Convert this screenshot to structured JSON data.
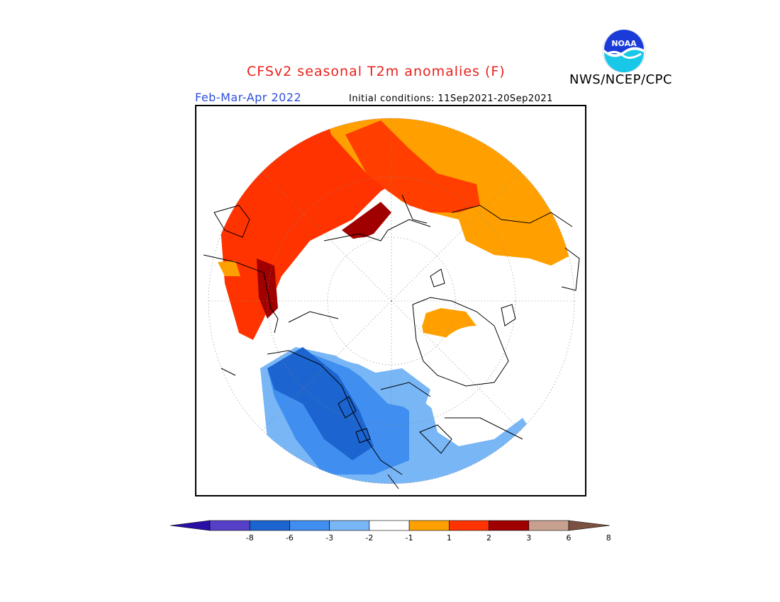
{
  "header": {
    "title": "CFSv2 seasonal T2m anomalies (F)",
    "org": "NWS/NCEP/CPC",
    "period": "Feb-Mar-Apr 2022",
    "initial_conditions": "Initial conditions: 11Sep2021-20Sep2021",
    "logo_text": "NOAA"
  },
  "colorbar": {
    "ticks": [
      "-8",
      "-6",
      "-3",
      "-2",
      "-1",
      "1",
      "2",
      "3",
      "6",
      "8"
    ],
    "colors": [
      "#2a0fa6",
      "#5640c8",
      "#1c64d0",
      "#3f8ef0",
      "#78b6f6",
      "#ffffff",
      "#ffa000",
      "#ff3300",
      "#a00000",
      "#c8a090",
      "#7a5040"
    ]
  },
  "legend_colors": {
    "warm_1_2": "#ffa000",
    "warm_2_3": "#ff3300",
    "warm_3_6": "#a00000",
    "cold_1_2": "#78b6f6",
    "cold_2_3": "#3f8ef0",
    "cold_3_6": "#1c64d0"
  }
}
